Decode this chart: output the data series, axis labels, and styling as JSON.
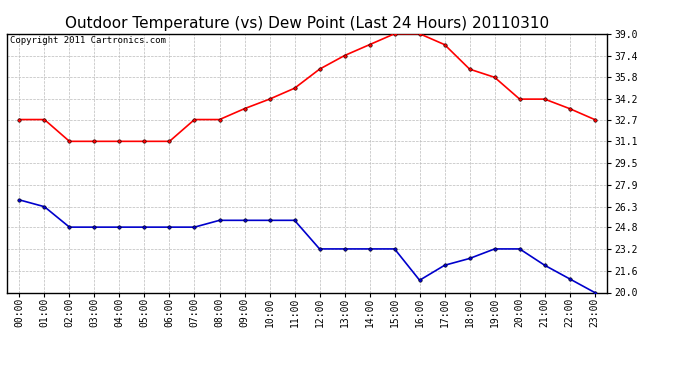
{
  "title": "Outdoor Temperature (vs) Dew Point (Last 24 Hours) 20110310",
  "copyright": "Copyright 2011 Cartronics.com",
  "hours": [
    "00:00",
    "01:00",
    "02:00",
    "03:00",
    "04:00",
    "05:00",
    "06:00",
    "07:00",
    "08:00",
    "09:00",
    "10:00",
    "11:00",
    "12:00",
    "13:00",
    "14:00",
    "15:00",
    "16:00",
    "17:00",
    "18:00",
    "19:00",
    "20:00",
    "21:00",
    "22:00",
    "23:00"
  ],
  "temp": [
    32.7,
    32.7,
    31.1,
    31.1,
    31.1,
    31.1,
    31.1,
    32.7,
    32.7,
    33.5,
    34.2,
    35.0,
    36.4,
    37.4,
    38.2,
    39.0,
    39.0,
    38.2,
    36.4,
    35.8,
    34.2,
    34.2,
    33.5,
    32.7
  ],
  "dew": [
    26.8,
    26.3,
    24.8,
    24.8,
    24.8,
    24.8,
    24.8,
    24.8,
    25.3,
    25.3,
    25.3,
    25.3,
    23.2,
    23.2,
    23.2,
    23.2,
    20.9,
    22.0,
    22.5,
    23.2,
    23.2,
    22.0,
    21.0,
    20.0
  ],
  "temp_color": "#ff0000",
  "dew_color": "#0000cc",
  "bg_color": "#ffffff",
  "plot_bg_color": "#ffffff",
  "grid_color": "#bbbbbb",
  "ylim_min": 20.0,
  "ylim_max": 39.0,
  "yticks": [
    20.0,
    21.6,
    23.2,
    24.8,
    26.3,
    27.9,
    29.5,
    31.1,
    32.7,
    34.2,
    35.8,
    37.4,
    39.0
  ],
  "marker": "o",
  "marker_size": 2.5,
  "line_width": 1.2,
  "title_fontsize": 11,
  "tick_fontsize": 7,
  "copyright_fontsize": 6.5
}
